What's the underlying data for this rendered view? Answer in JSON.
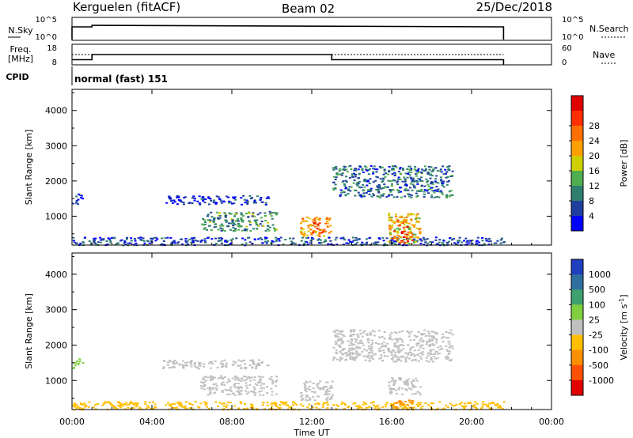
{
  "header": {
    "station": "Kerguelen (fitACF)",
    "beam": "Beam 02",
    "date": "25/Dec/2018"
  },
  "nsky_panel": {
    "left_label": "N.Sky",
    "left_ticks": [
      "10^5",
      "10^0"
    ],
    "right_ticks": [
      "10^5",
      "10^0"
    ],
    "right_label": "N.Search"
  },
  "freq_panel": {
    "left_label_1": "Freq.",
    "left_label_2": "[MHz]",
    "left_ticks": [
      "18",
      "8"
    ],
    "right_ticks": [
      "60",
      "0"
    ],
    "right_label": "Nave",
    "freq_mhz": [
      [
        0.0,
        10.5
      ],
      [
        1.0,
        10.5
      ],
      [
        1.0,
        13.0
      ],
      [
        13.0,
        13.0
      ],
      [
        13.0,
        10.5
      ],
      [
        21.6,
        10.5
      ]
    ],
    "nave": [
      [
        0.0,
        30
      ],
      [
        1.0,
        30
      ],
      [
        1.0,
        30
      ],
      [
        13.0,
        30
      ],
      [
        13.0,
        30
      ],
      [
        21.6,
        30
      ]
    ]
  },
  "cpid": {
    "label": "CPID",
    "value": "normal (fast) 151"
  },
  "chart_data": [
    {
      "type": "heatmap",
      "title": "",
      "xlabel": "Time UT",
      "ylabel": "Slant Range [km]",
      "colorbar_label": "Power [dB]",
      "xlim": [
        0,
        24
      ],
      "ylim": [
        180,
        4600
      ],
      "x_ticks": [
        "00:00",
        "04:00",
        "08:00",
        "12:00",
        "16:00",
        "20:00",
        "00:00"
      ],
      "y_ticks": [
        "1000",
        "2000",
        "3000",
        "4000"
      ],
      "colorbar_ticks": [
        "4",
        "8",
        "12",
        "16",
        "20",
        "24",
        "28"
      ],
      "colorbar_colors": [
        "#0000ff",
        "#1f3f9f",
        "#2f7f6f",
        "#4fae4f",
        "#cfcf00",
        "#ff9f00",
        "#ff6f00",
        "#ff2f00",
        "#e00000"
      ],
      "data_end_hour": 21.6,
      "regions": [
        {
          "t": [
            0.0,
            0.5
          ],
          "r": [
            1350,
            1650
          ],
          "v": 6
        },
        {
          "t": [
            0.0,
            21.6
          ],
          "r": [
            190,
            420
          ],
          "v": 7
        },
        {
          "t": [
            6.4,
            10.2
          ],
          "r": [
            600,
            1150
          ],
          "v": 11
        },
        {
          "t": [
            11.4,
            13.0
          ],
          "r": [
            450,
            1000
          ],
          "v": 21
        },
        {
          "t": [
            12.0,
            12.6
          ],
          "r": [
            550,
            850
          ],
          "v": 27
        },
        {
          "t": [
            13.0,
            19.0
          ],
          "r": [
            1550,
            2450
          ],
          "v": 9
        },
        {
          "t": [
            15.8,
            17.4
          ],
          "r": [
            250,
            1100
          ],
          "v": 18
        },
        {
          "t": [
            16.0,
            17.0
          ],
          "r": [
            250,
            600
          ],
          "v": 26
        },
        {
          "t": [
            16.2,
            17.0
          ],
          "r": [
            700,
            950
          ],
          "v": 24
        },
        {
          "t": [
            4.5,
            9.8
          ],
          "r": [
            1350,
            1600
          ],
          "v": 5
        }
      ]
    },
    {
      "type": "heatmap",
      "title": "",
      "xlabel": "Time UT",
      "ylabel": "Slant Range [km]",
      "colorbar_label": "Velocity [m s^-1]",
      "xlim": [
        0,
        24
      ],
      "ylim": [
        180,
        4600
      ],
      "x_ticks": [
        "00:00",
        "04:00",
        "08:00",
        "12:00",
        "16:00",
        "20:00",
        "00:00"
      ],
      "y_ticks": [
        "1000",
        "2000",
        "3000",
        "4000"
      ],
      "colorbar_ticks": [
        "1000",
        "500",
        "100",
        "25",
        "-25",
        "-100",
        "-500",
        "-1000"
      ],
      "colorbar_colors": [
        "#1f3fbf",
        "#2f6f9f",
        "#3fa06f",
        "#7fcf3f",
        "#c0c0c0",
        "#ffbf00",
        "#ff8f00",
        "#ff4f00",
        "#e00000"
      ],
      "data_end_hour": 21.6,
      "regions": [
        {
          "t": [
            0.0,
            0.5
          ],
          "r": [
            1350,
            1650
          ],
          "v": 60
        },
        {
          "t": [
            0.0,
            21.6
          ],
          "r": [
            190,
            420
          ],
          "v": -60
        },
        {
          "t": [
            6.4,
            10.2
          ],
          "r": [
            600,
            1150
          ],
          "v": 0
        },
        {
          "t": [
            11.4,
            13.0
          ],
          "r": [
            450,
            1000
          ],
          "v": 0
        },
        {
          "t": [
            13.0,
            19.0
          ],
          "r": [
            1550,
            2450
          ],
          "v": 0
        },
        {
          "t": [
            15.8,
            17.4
          ],
          "r": [
            600,
            1100
          ],
          "v": 0
        },
        {
          "t": [
            16.0,
            17.0
          ],
          "r": [
            250,
            500
          ],
          "v": -150
        },
        {
          "t": [
            4.5,
            9.8
          ],
          "r": [
            1350,
            1600
          ],
          "v": 0
        }
      ]
    }
  ]
}
